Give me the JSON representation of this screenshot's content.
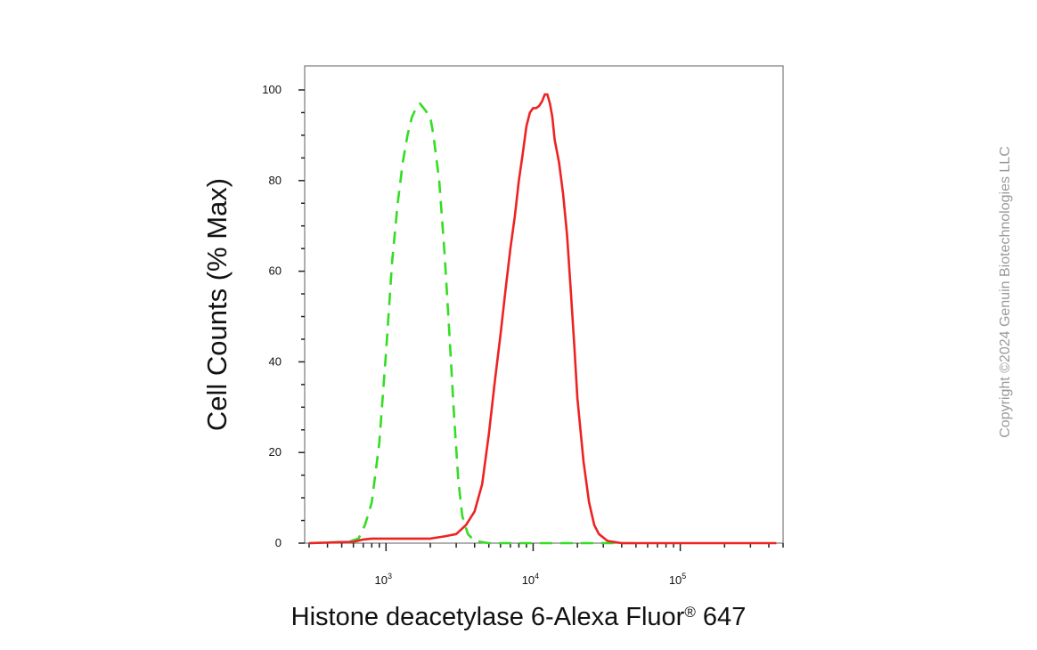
{
  "chart_data": {
    "type": "line",
    "xlabel": "Histone deacetylase 6-Alexa Fluor",
    "xlabel_sup": "®",
    "xlabel_suffix": " 647",
    "ylabel": "Cell Counts (% Max)",
    "x_scale": "log",
    "xlim": [
      280,
      500000
    ],
    "ylim": [
      0,
      100
    ],
    "y_ticks": [
      0,
      20,
      40,
      60,
      80,
      100
    ],
    "x_ticks": [
      {
        "value": 1000,
        "base": "10",
        "exp": "3"
      },
      {
        "value": 10000,
        "base": "10",
        "exp": "4"
      },
      {
        "value": 100000,
        "base": "10",
        "exp": "5"
      }
    ],
    "grid": false,
    "series": [
      {
        "color": "#33dd22",
        "dash": "dashed",
        "points": [
          [
            300,
            0
          ],
          [
            560,
            0.3
          ],
          [
            650,
            1
          ],
          [
            720,
            4
          ],
          [
            800,
            9
          ],
          [
            900,
            22
          ],
          [
            1000,
            42
          ],
          [
            1100,
            62
          ],
          [
            1200,
            75
          ],
          [
            1300,
            84
          ],
          [
            1400,
            90
          ],
          [
            1500,
            94
          ],
          [
            1600,
            96
          ],
          [
            1700,
            97
          ],
          [
            1800,
            96
          ],
          [
            1900,
            95
          ],
          [
            2000,
            94
          ],
          [
            2100,
            90
          ],
          [
            2300,
            80
          ],
          [
            2500,
            64
          ],
          [
            2700,
            46
          ],
          [
            2900,
            28
          ],
          [
            3100,
            14
          ],
          [
            3300,
            6
          ],
          [
            3600,
            2
          ],
          [
            4000,
            0.5
          ],
          [
            5000,
            0
          ],
          [
            20000,
            0
          ],
          [
            50000,
            0
          ]
        ]
      },
      {
        "color": "#ee2222",
        "dash": "solid",
        "points": [
          [
            300,
            0
          ],
          [
            600,
            0.3
          ],
          [
            700,
            0.8
          ],
          [
            800,
            1
          ],
          [
            1000,
            1
          ],
          [
            1500,
            1
          ],
          [
            2000,
            1
          ],
          [
            2500,
            1.5
          ],
          [
            3000,
            2
          ],
          [
            3500,
            4
          ],
          [
            4000,
            7
          ],
          [
            4500,
            13
          ],
          [
            5000,
            24
          ],
          [
            5500,
            36
          ],
          [
            6000,
            46
          ],
          [
            6500,
            56
          ],
          [
            7000,
            65
          ],
          [
            7500,
            72
          ],
          [
            8000,
            80
          ],
          [
            8500,
            86
          ],
          [
            9000,
            92
          ],
          [
            9500,
            95
          ],
          [
            10000,
            96
          ],
          [
            10500,
            96
          ],
          [
            11000,
            96.5
          ],
          [
            11500,
            97.5
          ],
          [
            12000,
            99
          ],
          [
            12500,
            99
          ],
          [
            13000,
            97
          ],
          [
            13500,
            94
          ],
          [
            14000,
            89
          ],
          [
            15000,
            84
          ],
          [
            16000,
            77
          ],
          [
            17000,
            68
          ],
          [
            18000,
            56
          ],
          [
            19000,
            44
          ],
          [
            20000,
            32
          ],
          [
            22000,
            18
          ],
          [
            24000,
            9
          ],
          [
            26000,
            4
          ],
          [
            28000,
            2
          ],
          [
            32000,
            0.5
          ],
          [
            40000,
            0
          ],
          [
            100000,
            0
          ],
          [
            450000,
            0
          ]
        ]
      }
    ]
  },
  "copyright": "Copyright ©2024 Genuin Biotechnologies LLC"
}
